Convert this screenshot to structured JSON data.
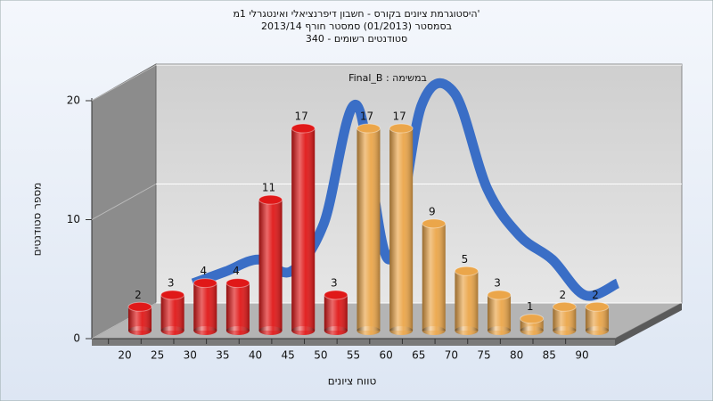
{
  "chart_data": {
    "type": "bar3d",
    "title": "היסטוגרמת ציונים בקורס - חשבון דיפרנציאלי ואינטגרלי 1מ'",
    "subtitle": "בסמסטר  (01/2013)  סמסטר חורף 2013/14",
    "subtitle2": "סטודנטים רשומים - 340",
    "annotation": "במשימה : Final_B",
    "y_label": "מספר סטודנטים",
    "x_label": "טווח ציונים",
    "categories": [
      "20",
      "25",
      "30",
      "35",
      "40",
      "45",
      "50",
      "55",
      "60",
      "65",
      "70",
      "75",
      "80",
      "85",
      "90"
    ],
    "series": [
      {
        "values": [
          2,
          3,
          4,
          4,
          11,
          17,
          3,
          17,
          17,
          9,
          5,
          3,
          1,
          2,
          2
        ],
        "colors": [
          "#e01818",
          "#e01818",
          "#e01818",
          "#e01818",
          "#e01818",
          "#e01818",
          "#e01818",
          "#eba64a",
          "#eba64a",
          "#eba64a",
          "#eba64a",
          "#eba64a",
          "#eba64a",
          "#eba64a",
          "#eba64a"
        ]
      },
      {
        "type": "line",
        "color": "#3a6ec6",
        "values": [
          null,
          3,
          4,
          5,
          4,
          8,
          18,
          5,
          18,
          19,
          11,
          7,
          5,
          2,
          3
        ]
      }
    ],
    "ylim": [
      0,
      20
    ],
    "yticks": [
      0,
      10,
      20
    ],
    "grid": true
  }
}
